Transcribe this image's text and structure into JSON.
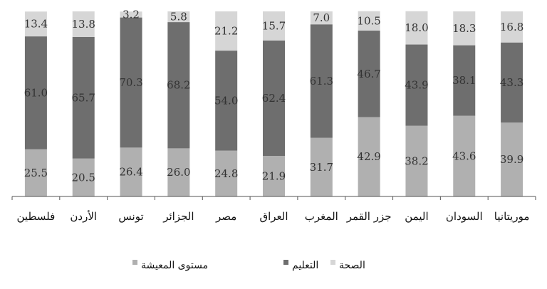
{
  "chart_data": {
    "type": "bar",
    "stacked": true,
    "categories": [
      "فلسطين",
      "الأردن",
      "تونس",
      "الجزائر",
      "مصر",
      "العراق",
      "المغرب",
      "جزر القمر",
      "اليمن",
      "السودان",
      "موريتانيا"
    ],
    "series": [
      {
        "name": "مستوى المعيشة",
        "color": "#b0b0b0",
        "values": [
          25.5,
          20.5,
          26.4,
          26.0,
          24.8,
          21.9,
          31.7,
          42.9,
          38.2,
          43.6,
          39.9
        ]
      },
      {
        "name": "التعليم",
        "color": "#6e6e6e",
        "values": [
          61.0,
          65.7,
          70.3,
          68.2,
          54.0,
          62.4,
          61.3,
          46.7,
          43.9,
          38.1,
          43.3
        ]
      },
      {
        "name": "الصحة",
        "color": "#d6d6d6",
        "values": [
          13.4,
          13.8,
          3.2,
          5.8,
          21.2,
          15.7,
          7.0,
          10.5,
          18.0,
          18.3,
          16.8
        ]
      }
    ],
    "value_labels": [
      [
        "25.5",
        "20.5",
        "26.4",
        "26.0",
        "24.8",
        "21.9",
        "31.7",
        "42.9",
        "38.2",
        "43.6",
        "39.9"
      ],
      [
        "61.0",
        "65.7",
        "70.3",
        "68.2",
        "54.0",
        "62.4",
        "61.3",
        "46.7",
        "43.9",
        "38.1",
        "43.3"
      ],
      [
        "13.4",
        "13.8",
        "3.2",
        "5.8",
        "21.2",
        "15.7",
        "7.0",
        "10.5",
        "18.0",
        "18.3",
        "16.8"
      ]
    ],
    "ylim": [
      0,
      100
    ],
    "grid": false,
    "legend_position": "bottom"
  }
}
